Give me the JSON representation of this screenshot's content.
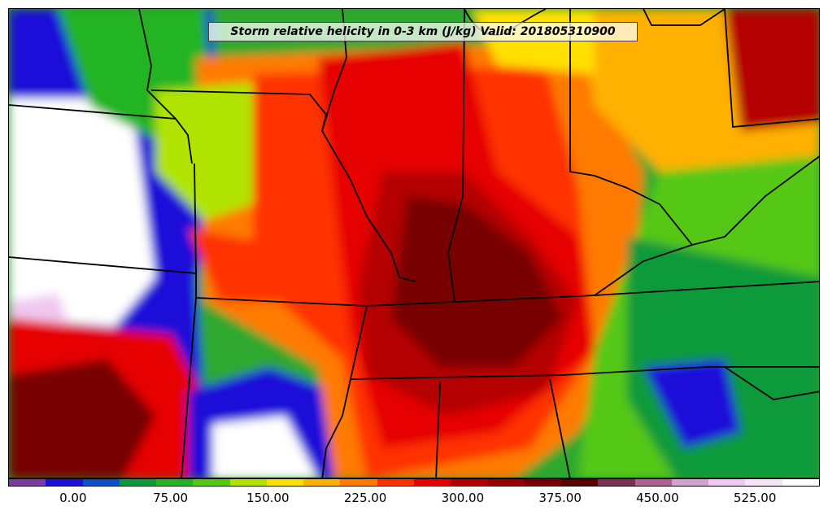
{
  "title": "Storm relative helicity in 0-3 km (J/kg) Valid: 201805310900",
  "colorbar": {
    "colors": [
      "#7a3aa0",
      "#1a10d8",
      "#0a50c8",
      "#0a9a3a",
      "#22b422",
      "#55c812",
      "#b0e400",
      "#ffe000",
      "#ffb000",
      "#ff7a00",
      "#ff3000",
      "#e60000",
      "#b40000",
      "#960000",
      "#780000",
      "#5a0000",
      "#7a3050",
      "#b06090",
      "#d2a0d2",
      "#f0c8f0",
      "#f8e4f8",
      "#ffffff"
    ],
    "tick_labels": [
      "0.00",
      "75.00",
      "150.00",
      "225.00",
      "300.00",
      "375.00",
      "450.00",
      "525.00"
    ],
    "tick_values": [
      0,
      75,
      150,
      225,
      300,
      375,
      450,
      525
    ],
    "range": [
      -50,
      575
    ]
  }
}
